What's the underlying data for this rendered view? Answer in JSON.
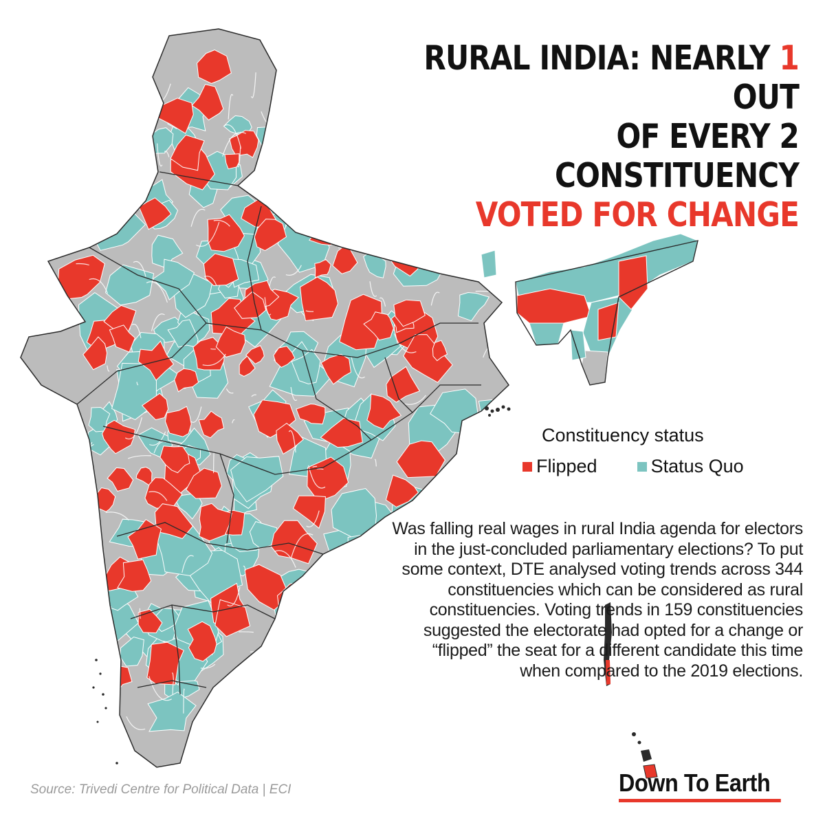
{
  "headline": {
    "line1_pre": "RURAL INDIA: NEARLY ",
    "line1_accent": "1",
    "line1_post": " OUT",
    "line2": "OF EVERY 2 CONSTITUENCY",
    "line3": "VOTED FOR CHANGE"
  },
  "legend": {
    "title": "Constituency status",
    "items": [
      {
        "label": "Flipped",
        "color": "#e8382b"
      },
      {
        "label": "Status Quo",
        "color": "#7cc4c0"
      }
    ]
  },
  "colors": {
    "flipped": "#e8382b",
    "status_quo": "#7cc4c0",
    "non_rural": "#bcbcbc",
    "border": "#ffffff",
    "state_border": "#2a2a2a"
  },
  "description": "Was falling real wages in rural India agenda for electors in the just-concluded parliamentary elections? To put some context, DTE analysed voting trends across 344 constituencies which can be considered as rural constituencies. Voting trends in 159 constituencies suggested the electorate had opted for a change or “flipped” the seat for a different candidate this time when compared to the 2019 elections.",
  "source": "Source:  Trivedi Centre for Political Data  |  ECI",
  "brand": "Down To Earth"
}
